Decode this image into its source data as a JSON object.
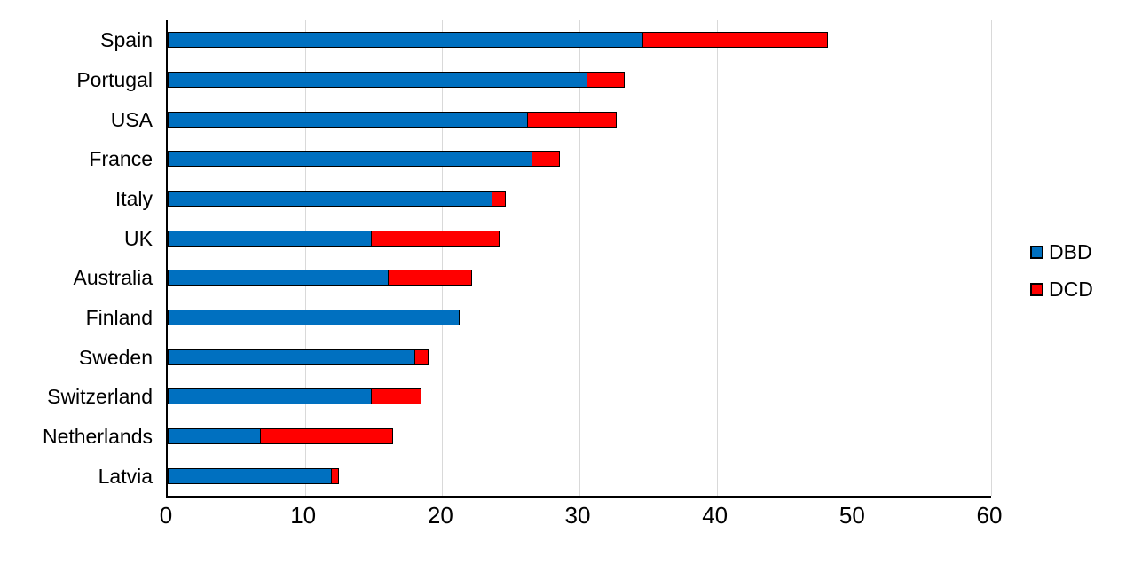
{
  "chart_data": {
    "type": "bar",
    "orientation": "horizontal",
    "stacked": true,
    "title": "",
    "xlabel": "",
    "ylabel": "",
    "xlim": [
      0,
      60
    ],
    "xticks": [
      0,
      10,
      20,
      30,
      40,
      50,
      60
    ],
    "grid": true,
    "legend_position": "right",
    "categories": [
      "Spain",
      "Portugal",
      "USA",
      "France",
      "Italy",
      "UK",
      "Australia",
      "Finland",
      "Sweden",
      "Switzerland",
      "Netherlands",
      "Latvia"
    ],
    "series": [
      {
        "name": "DBD",
        "color": "#0070C0",
        "values": [
          34.7,
          30.6,
          26.3,
          26.6,
          23.7,
          14.9,
          16.1,
          21.3,
          18.1,
          14.9,
          6.8,
          12.0
        ]
      },
      {
        "name": "DCD",
        "color": "#FF0000",
        "values": [
          13.5,
          2.8,
          6.5,
          2.1,
          1.0,
          9.4,
          6.2,
          0,
          1.0,
          3.7,
          9.7,
          0.6
        ]
      }
    ],
    "totals": [
      48.2,
      33.4,
      32.8,
      28.7,
      24.7,
      24.3,
      22.3,
      21.3,
      19.1,
      18.6,
      16.5,
      12.6
    ]
  },
  "colors": {
    "dbd": "#0070C0",
    "dcd": "#FF0000",
    "gridline": "#D9D9D9",
    "axis": "#000000",
    "bar_border": "#000000",
    "background": "#FFFFFF"
  }
}
